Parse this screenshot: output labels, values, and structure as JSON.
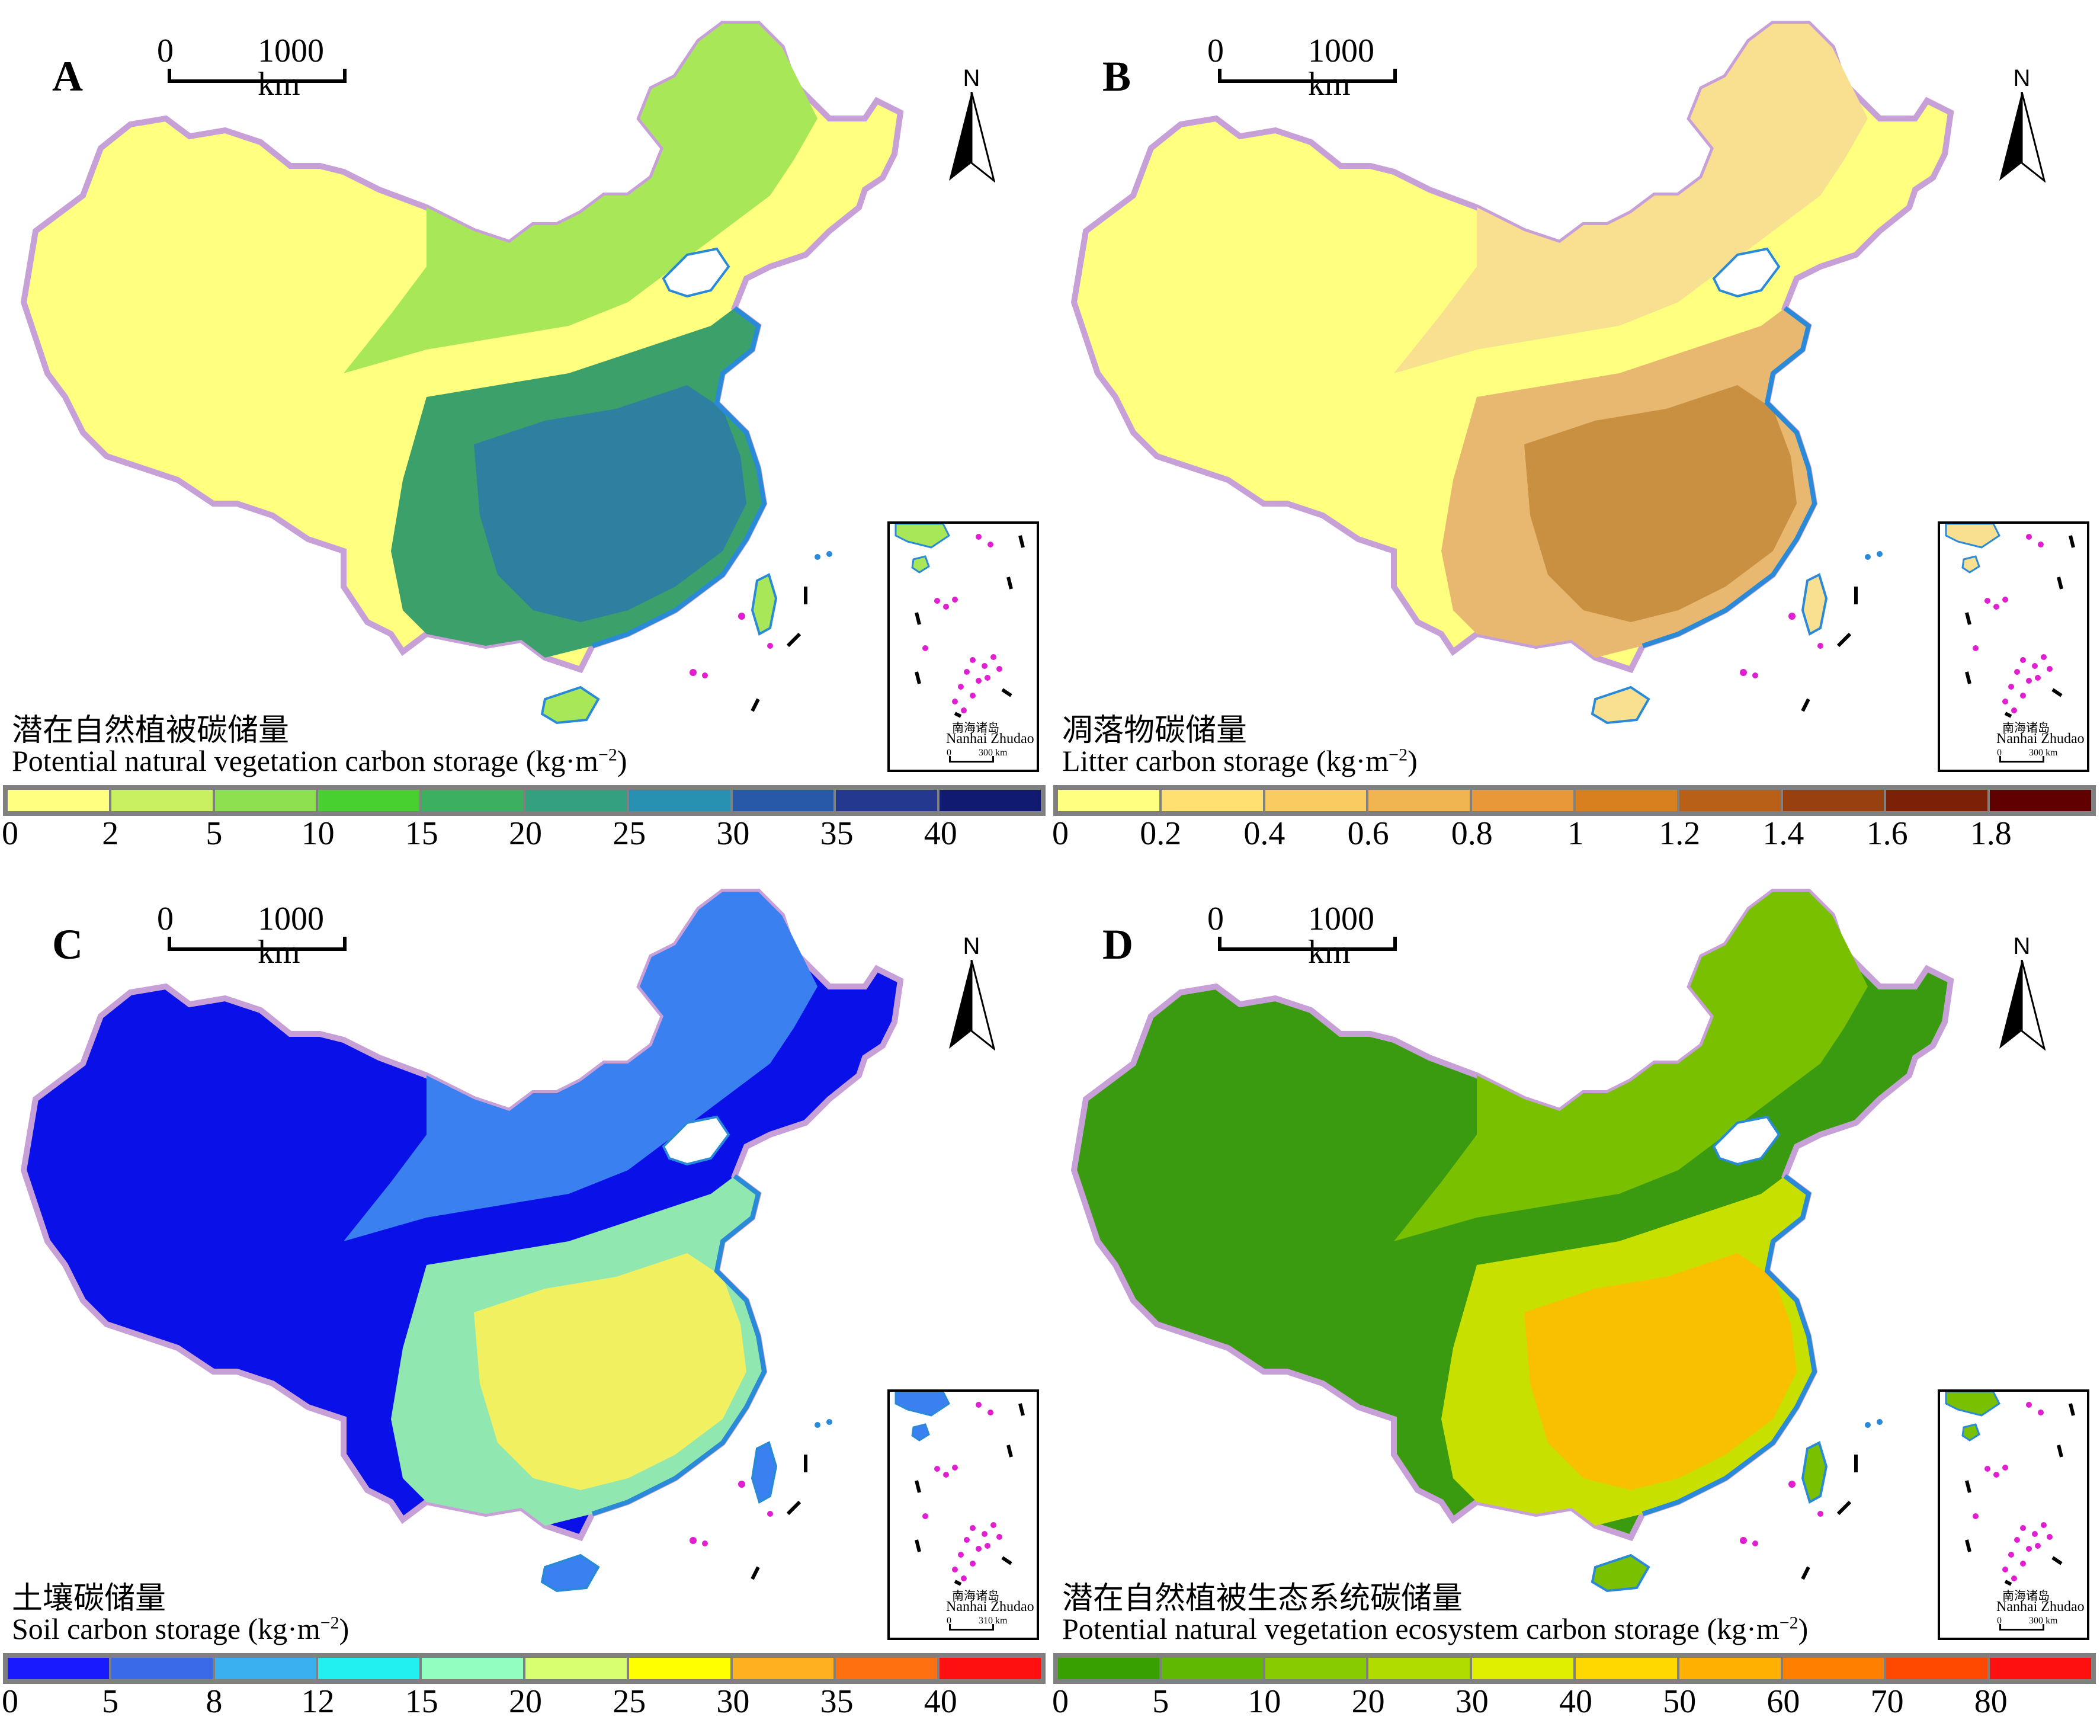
{
  "panels": [
    {
      "letter": "A",
      "scale": {
        "zero": "0",
        "label": "1000 km"
      },
      "north": "N",
      "caption_cn": "潜在自然植被碳储量",
      "caption_en": "Potential natural vegetation carbon storage (kg·m",
      "caption_sup": "−2",
      "caption_close": ")",
      "inset": {
        "name_cn": "南海诸岛",
        "name_en": "Nanhai Zhudao",
        "sb0": "0",
        "sb1": "300 km"
      },
      "legend_colors": [
        "#ffff80",
        "#c8f060",
        "#8ee050",
        "#48d030",
        "#3cb060",
        "#34a080",
        "#2890b0",
        "#2858a8",
        "#243890",
        "#101a70"
      ],
      "legend_ticks": [
        "0",
        "2",
        "5",
        "10",
        "15",
        "20",
        "25",
        "30",
        "35",
        "40"
      ],
      "map_colors": {
        "west": "#ffff80",
        "mid": "#a8e858",
        "east": "#3ca06a",
        "deep": "#2e7fa0"
      }
    },
    {
      "letter": "B",
      "scale": {
        "zero": "0",
        "label": "1000 km"
      },
      "north": "N",
      "caption_cn": "凋落物碳储量",
      "caption_en": "Litter carbon storage (kg·m",
      "caption_sup": "−2",
      "caption_close": ")",
      "inset": {
        "name_cn": "南海诸岛",
        "name_en": "Nanhai Zhudao",
        "sb0": "0",
        "sb1": "300 km"
      },
      "legend_colors": [
        "#ffff80",
        "#ffe070",
        "#f8cc60",
        "#f0b450",
        "#e89838",
        "#d88020",
        "#b86018",
        "#984010",
        "#7c2008",
        "#600000"
      ],
      "legend_ticks": [
        "0",
        "0.2",
        "0.4",
        "0.6",
        "0.8",
        "1",
        "1.2",
        "1.4",
        "1.6",
        "1.8"
      ],
      "map_colors": {
        "west": "#ffff80",
        "mid": "#f8e090",
        "east": "#e8b870",
        "deep": "#c89040"
      }
    },
    {
      "letter": "C",
      "scale": {
        "zero": "0",
        "label": "1000 km"
      },
      "north": "N",
      "caption_cn": "土壤碳储量",
      "caption_en": "Soil carbon storage (kg·m",
      "caption_sup": "−2",
      "caption_close": ")",
      "inset": {
        "name_cn": "南海诸岛",
        "name_en": "Nanhai Zhudao",
        "sb0": "0",
        "sb1": "310 km"
      },
      "legend_colors": [
        "#1a1aff",
        "#3a6ae8",
        "#3ab0f0",
        "#20f0f0",
        "#90ffc0",
        "#d8ff70",
        "#ffff00",
        "#ffb020",
        "#ff7010",
        "#ff1010"
      ],
      "legend_ticks": [
        "0",
        "5",
        "8",
        "12",
        "15",
        "20",
        "25",
        "30",
        "35",
        "40"
      ],
      "map_colors": {
        "west": "#0a10e8",
        "mid": "#3a80f0",
        "east": "#90e8b0",
        "deep": "#f0f060"
      }
    },
    {
      "letter": "D",
      "scale": {
        "zero": "0",
        "label": "1000 km"
      },
      "north": "N",
      "caption_cn": "潜在自然植被生态系统碳储量",
      "caption_en": "Potential natural vegetation ecosystem carbon storage (kg·m",
      "caption_sup": "−2",
      "caption_close": ")",
      "inset": {
        "name_cn": "南海诸岛",
        "name_en": "Nanhai Zhudao",
        "sb0": "0",
        "sb1": "300 km"
      },
      "legend_colors": [
        "#38a000",
        "#60b800",
        "#88cc00",
        "#b0dc00",
        "#e0ee00",
        "#ffd800",
        "#ffb000",
        "#ff8000",
        "#ff4800",
        "#ff1010"
      ],
      "legend_ticks": [
        "0",
        "5",
        "10",
        "20",
        "30",
        "40",
        "50",
        "60",
        "70",
        "80"
      ],
      "map_colors": {
        "west": "#3a9a10",
        "mid": "#78c000",
        "east": "#c8e000",
        "deep": "#f8c000"
      }
    }
  ]
}
